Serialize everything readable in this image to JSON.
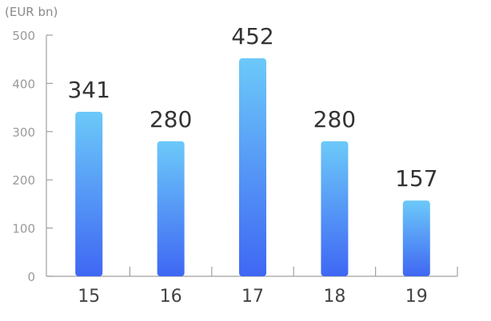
{
  "chart_data": {
    "type": "bar",
    "unit_label": "(EUR bn)",
    "categories": [
      "15",
      "16",
      "17",
      "18",
      "19"
    ],
    "values": [
      341,
      280,
      452,
      280,
      157
    ],
    "data_labels": [
      "341",
      "280",
      "452",
      "280",
      "157"
    ],
    "ylim": [
      0,
      500
    ],
    "yticks": [
      0,
      100,
      200,
      300,
      400,
      500
    ],
    "grid": false,
    "legend": "none",
    "colors": {
      "bar_top": "#6cc9f9",
      "bar_bottom": "#3f67f3",
      "axis": "#a0a0a0",
      "tick_label": "#9a9a9a",
      "category_label": "#444444",
      "data_label": "#333333"
    }
  }
}
